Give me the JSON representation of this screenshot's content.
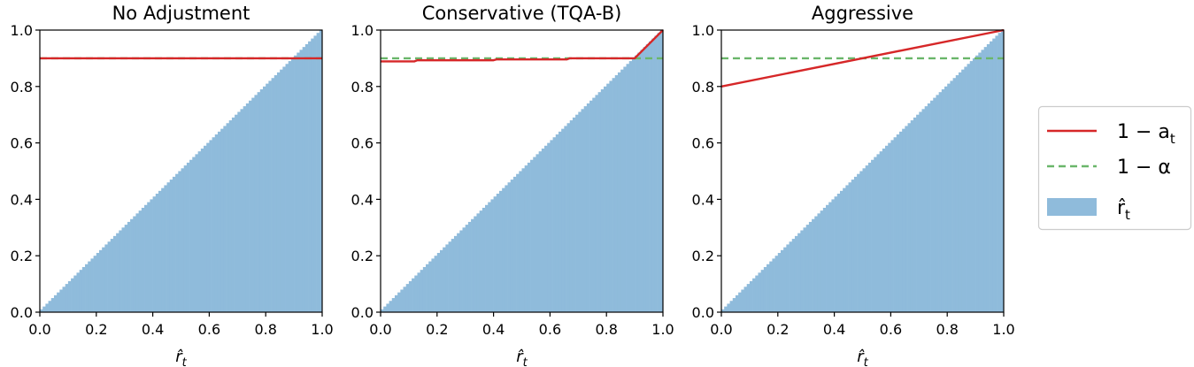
{
  "chart_data": [
    {
      "type": "bar",
      "title": "No Adjustment",
      "xlabel": "r̂",
      "xlabel_sub": "t",
      "xlim": [
        0.0,
        1.0
      ],
      "ylim": [
        0.0,
        1.0
      ],
      "xticks": [
        "0.0",
        "0.2",
        "0.4",
        "0.6",
        "0.8",
        "1.0"
      ],
      "yticks": [
        "0.0",
        "0.2",
        "0.4",
        "0.6",
        "0.8",
        "1.0"
      ],
      "bars": {
        "name": "r̂_t",
        "from": 0.0,
        "to": 1.0,
        "count": 100,
        "value": "x"
      },
      "series": [
        {
          "legend_index": 0,
          "x": [
            0.0,
            1.0
          ],
          "y": [
            0.9,
            0.9
          ]
        },
        {
          "legend_index": 1,
          "x": [
            0.0,
            1.0
          ],
          "y": [
            0.9,
            0.9
          ]
        }
      ]
    },
    {
      "type": "bar",
      "title": "Conservative (TQA-B)",
      "xlabel": "r̂",
      "xlabel_sub": "t",
      "xlim": [
        0.0,
        1.0
      ],
      "ylim": [
        0.0,
        1.0
      ],
      "xticks": [
        "0.0",
        "0.2",
        "0.4",
        "0.6",
        "0.8",
        "1.0"
      ],
      "yticks": [
        "0.0",
        "0.2",
        "0.4",
        "0.6",
        "0.8",
        "1.0"
      ],
      "bars": {
        "name": "r̂_t",
        "from": 0.0,
        "to": 1.0,
        "count": 100,
        "value": "x"
      },
      "series": [
        {
          "legend_index": 0,
          "x": [
            0.0,
            0.12,
            0.13,
            0.4,
            0.41,
            0.66,
            0.67,
            0.9,
            1.0
          ],
          "y": [
            0.889,
            0.889,
            0.893,
            0.893,
            0.896,
            0.896,
            0.9,
            0.9,
            1.0
          ]
        },
        {
          "legend_index": 1,
          "x": [
            0.0,
            1.0
          ],
          "y": [
            0.9,
            0.9
          ]
        }
      ]
    },
    {
      "type": "bar",
      "title": "Aggressive",
      "xlabel": "r̂",
      "xlabel_sub": "t",
      "xlim": [
        0.0,
        1.0
      ],
      "ylim": [
        0.0,
        1.0
      ],
      "xticks": [
        "0.0",
        "0.2",
        "0.4",
        "0.6",
        "0.8",
        "1.0"
      ],
      "yticks": [
        "0.0",
        "0.2",
        "0.4",
        "0.6",
        "0.8",
        "1.0"
      ],
      "bars": {
        "name": "r̂_t",
        "from": 0.0,
        "to": 1.0,
        "count": 100,
        "value": "x"
      },
      "series": [
        {
          "legend_index": 0,
          "x": [
            0.0,
            1.0
          ],
          "y": [
            0.8,
            1.0
          ]
        },
        {
          "legend_index": 1,
          "x": [
            0.0,
            1.0
          ],
          "y": [
            0.9,
            0.9
          ]
        }
      ]
    }
  ],
  "legend": {
    "placement": "right",
    "entries": [
      {
        "main": "1 − a",
        "sub": "t",
        "style": "solid",
        "color": "#d62728"
      },
      {
        "main": "1 − α",
        "sub": "",
        "style": "dashed",
        "color": "#6ab66a"
      },
      {
        "main": "r̂",
        "sub": "t",
        "style": "patch",
        "color": "#8fbbdb"
      }
    ]
  },
  "colors": {
    "line_red": "#d62728",
    "line_green": "#6ab66a",
    "bar_blue": "#8fbbdb",
    "axis": "#000000"
  }
}
